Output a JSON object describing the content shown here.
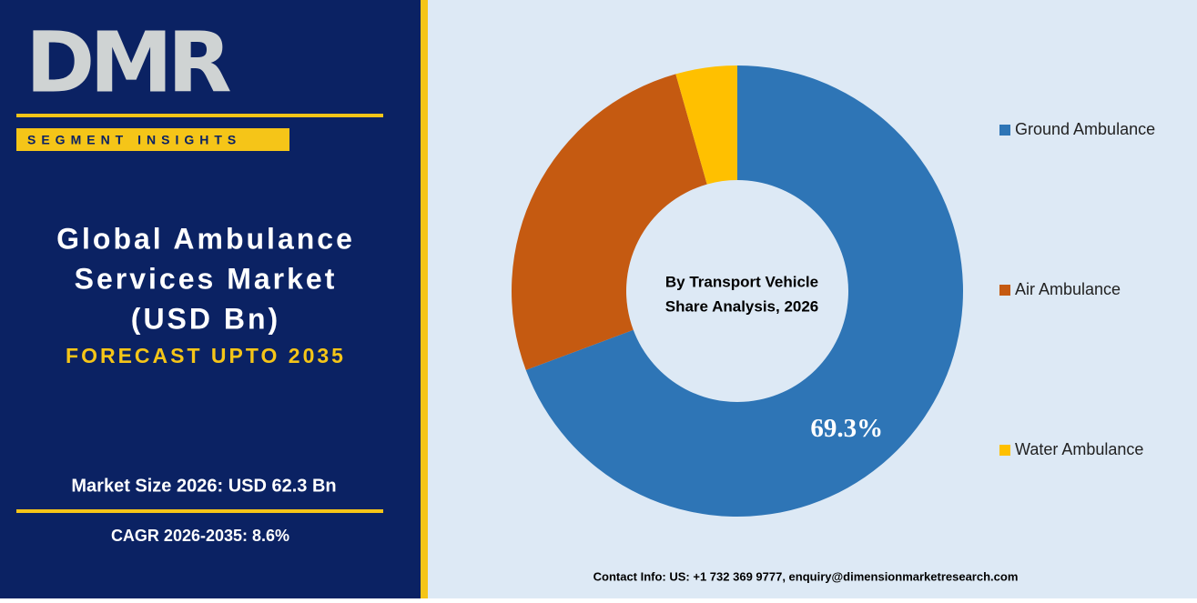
{
  "panel": {
    "logo": "DMR",
    "badge": "SEGMENT INSIGHTS",
    "title_lines": [
      "Global Ambulance",
      "Services Market",
      "(USD Bn)"
    ],
    "forecast": "FORECAST UPTO 2035",
    "market_size": "Market Size 2026: USD 62.3 Bn",
    "cagr": "CAGR 2026-2035: 8.6%"
  },
  "chart_data": {
    "type": "donut",
    "center_lines": [
      "By Transport Vehicle",
      "Share Analysis, 2026"
    ],
    "categories": [
      "Ground Ambulance",
      "Air Ambulance",
      "Water Ambulance"
    ],
    "values": [
      69.3,
      26.3,
      4.4
    ],
    "value_labels": [
      "69.3%",
      null,
      null
    ],
    "colors": [
      "#2e75b6",
      "#c55a11",
      "#ffc000"
    ]
  },
  "footer": {
    "contact": "Contact Info: US: +1 732 369 9777, enquiry@dimensionmarketresearch.com"
  }
}
